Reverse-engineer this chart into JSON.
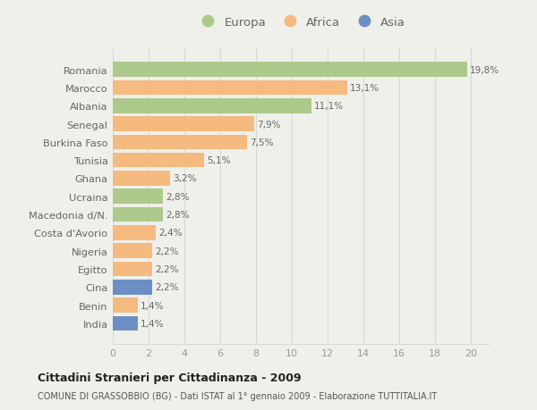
{
  "countries": [
    "Romania",
    "Marocco",
    "Albania",
    "Senegal",
    "Burkina Faso",
    "Tunisia",
    "Ghana",
    "Ucraina",
    "Macedonia d/N.",
    "Costa d'Avorio",
    "Nigeria",
    "Egitto",
    "Cina",
    "Benin",
    "India"
  ],
  "values": [
    19.8,
    13.1,
    11.1,
    7.9,
    7.5,
    5.1,
    3.2,
    2.8,
    2.8,
    2.4,
    2.2,
    2.2,
    2.2,
    1.4,
    1.4
  ],
  "labels": [
    "19,8%",
    "13,1%",
    "11,1%",
    "7,9%",
    "7,5%",
    "5,1%",
    "3,2%",
    "2,8%",
    "2,8%",
    "2,4%",
    "2,2%",
    "2,2%",
    "2,2%",
    "1,4%",
    "1,4%"
  ],
  "colors": [
    "#adc98b",
    "#f5ba80",
    "#adc98b",
    "#f5ba80",
    "#f5ba80",
    "#f5ba80",
    "#f5ba80",
    "#adc98b",
    "#adc98b",
    "#f5ba80",
    "#f5ba80",
    "#f5ba80",
    "#6b8fc5",
    "#f5ba80",
    "#6b8fc5"
  ],
  "legend_labels": [
    "Europa",
    "Africa",
    "Asia"
  ],
  "legend_colors": [
    "#adc98b",
    "#f5ba80",
    "#6b8fc5"
  ],
  "title_bold": "Cittadini Stranieri per Cittadinanza - 2009",
  "subtitle": "COMUNE DI GRASSOBBIO (BG) - Dati ISTAT al 1° gennaio 2009 - Elaborazione TUTTITALIA.IT",
  "xlim": [
    0,
    21
  ],
  "xticks": [
    0,
    2,
    4,
    6,
    8,
    10,
    12,
    14,
    16,
    18,
    20
  ],
  "background_color": "#f0f0ea",
  "grid_color": "#d8d8d8",
  "label_color": "#666666",
  "tick_color": "#999999"
}
